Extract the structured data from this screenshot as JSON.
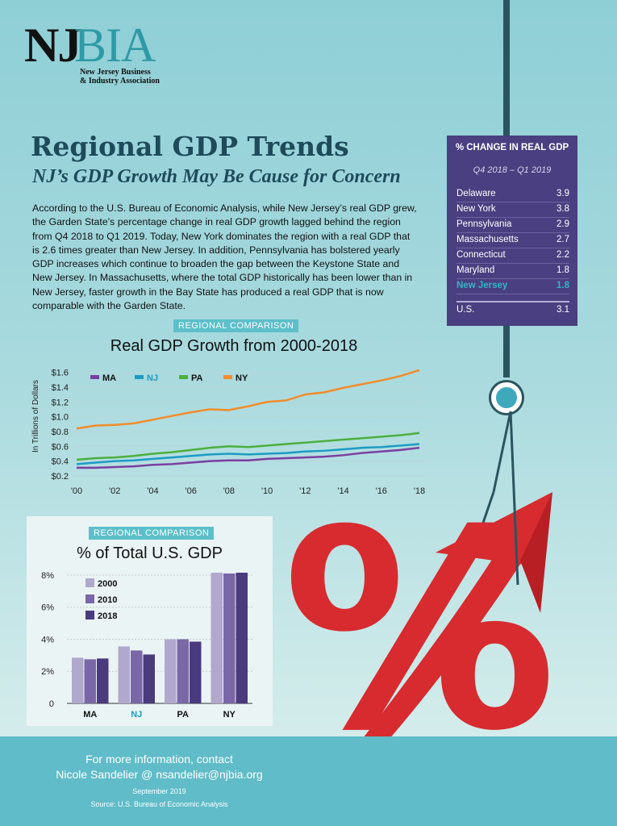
{
  "logo": {
    "part1": "NJ",
    "part2": "BIA",
    "line1": "New Jersey Business",
    "line2": "& Industry Association"
  },
  "header": {
    "title": "Regional GDP Trends",
    "subtitle": "NJ’s GDP Growth May Be Cause for Concern"
  },
  "intro": "According to the U.S. Bureau of Economic Analysis, while New Jersey’s real GDP grew, the Garden State’s percentage change in real GDP growth lagged behind the region from Q4 2018 to Q1 2019. Today, New York dominates the region with a real GDP that is 2.6 times greater than New Jersey. In addition, Pennsylvania has bolstered yearly GDP increases which continue to broaden the gap between the Keystone State and New Jersey.  In Massachusetts, where the total GDP historically has been lower than in New Jersey, faster growth in the Bay State has produced a real GDP that is now comparable with the Garden State.",
  "table": {
    "title": "% CHANGE IN REAL GDP",
    "subtitle": "Q4 2018 – Q1 2019",
    "rows": [
      {
        "name": "Delaware",
        "value": "3.9"
      },
      {
        "name": "New York",
        "value": "3.8"
      },
      {
        "name": "Pennsylvania",
        "value": "2.9"
      },
      {
        "name": "Massachusetts",
        "value": "2.7"
      },
      {
        "name": "Connecticut",
        "value": "2.2"
      },
      {
        "name": "Maryland",
        "value": "1.8"
      },
      {
        "name": "New Jersey",
        "value": "1.8"
      }
    ],
    "us": {
      "name": "U.S.",
      "value": "3.1"
    },
    "highlight_color": "#2fb7c9"
  },
  "section_label": "REGIONAL COMPARISON",
  "chart_data": [
    {
      "type": "line",
      "title": "Real GDP Growth from 2000-2018",
      "ylabel": "In Trillions of Dollars",
      "xlabel": "",
      "x": [
        2000,
        2001,
        2002,
        2003,
        2004,
        2005,
        2006,
        2007,
        2008,
        2009,
        2010,
        2011,
        2012,
        2013,
        2014,
        2015,
        2016,
        2017,
        2018
      ],
      "xticks": [
        2000,
        2002,
        2004,
        2006,
        2008,
        2010,
        2012,
        2014,
        2016,
        2018
      ],
      "xtick_labels": [
        "'00",
        "'02",
        "'04",
        "'06",
        "'08",
        "'10",
        "'12",
        "'14",
        "'16",
        "'18"
      ],
      "yticks": [
        0.2,
        0.4,
        0.6,
        0.8,
        1.0,
        1.2,
        1.4,
        1.6
      ],
      "ytick_labels": [
        "$0.2",
        "$0.4",
        "$0.6",
        "$0.8",
        "$1.0",
        "$1.2",
        "$1.4",
        "$1.6"
      ],
      "ylim": [
        0.2,
        1.65
      ],
      "grid": true,
      "legend": "top-left",
      "series": [
        {
          "name": "MA",
          "color": "#7a3fa0",
          "values": [
            0.31,
            0.31,
            0.32,
            0.33,
            0.35,
            0.36,
            0.38,
            0.4,
            0.41,
            0.41,
            0.43,
            0.44,
            0.45,
            0.46,
            0.48,
            0.51,
            0.53,
            0.55,
            0.58
          ]
        },
        {
          "name": "NJ",
          "color": "#1b9cc4",
          "values": [
            0.36,
            0.38,
            0.4,
            0.41,
            0.43,
            0.45,
            0.47,
            0.49,
            0.5,
            0.49,
            0.5,
            0.51,
            0.53,
            0.54,
            0.56,
            0.58,
            0.59,
            0.61,
            0.63
          ]
        },
        {
          "name": "PA",
          "color": "#4caf3e",
          "values": [
            0.42,
            0.44,
            0.45,
            0.47,
            0.5,
            0.52,
            0.55,
            0.58,
            0.6,
            0.59,
            0.61,
            0.63,
            0.65,
            0.67,
            0.69,
            0.71,
            0.73,
            0.75,
            0.78
          ]
        },
        {
          "name": "NY",
          "color": "#f28c2a",
          "values": [
            0.84,
            0.88,
            0.89,
            0.91,
            0.96,
            1.01,
            1.06,
            1.1,
            1.09,
            1.14,
            1.2,
            1.22,
            1.3,
            1.33,
            1.39,
            1.44,
            1.49,
            1.55,
            1.63
          ]
        }
      ]
    },
    {
      "type": "bar",
      "title": "% of Total U.S. GDP",
      "categories": [
        "MA",
        "NJ",
        "PA",
        "NY"
      ],
      "category_colors": [
        "#111111",
        "#1b9cc4",
        "#111111",
        "#111111"
      ],
      "yticks": [
        0,
        2,
        4,
        6,
        8
      ],
      "ytick_labels": [
        "0",
        "2%",
        "4%",
        "6%",
        "8%"
      ],
      "ylim": [
        0,
        8.4
      ],
      "grid": true,
      "legend": "top-left",
      "series": [
        {
          "name": "2000",
          "color": "#b1a8cd",
          "values": [
            2.85,
            3.55,
            4.0,
            8.15
          ]
        },
        {
          "name": "2010",
          "color": "#7a67a8",
          "values": [
            2.75,
            3.3,
            4.0,
            8.1
          ]
        },
        {
          "name": "2018",
          "color": "#4a3a7e",
          "values": [
            2.8,
            3.05,
            3.85,
            8.15
          ]
        }
      ]
    }
  ],
  "footer": {
    "line1": "For more information, contact",
    "line2": "Nicole Sandelier @ nsandelier@njbia.org",
    "date": "September 2019",
    "source": "Source: U.S. Bureau of Economic Analysis"
  },
  "graphic": {
    "name": "percent-sign-with-red-arrow",
    "symbol": "%",
    "symbol_color": "#d72b2f"
  }
}
